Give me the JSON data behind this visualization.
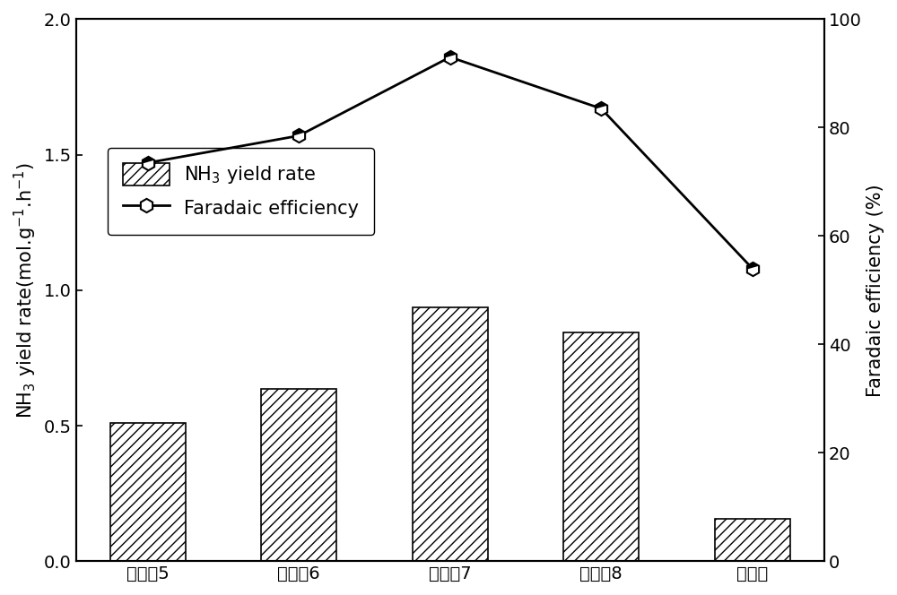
{
  "categories": [
    "实施兡5",
    "实施兡6",
    "实施兡7",
    "实施兡8",
    "对比例"
  ],
  "bar_values": [
    0.51,
    0.635,
    0.935,
    0.845,
    0.155
  ],
  "line_values": [
    73.5,
    78.5,
    93.0,
    83.5,
    54.0
  ],
  "bar_color": "#ffffff",
  "line_color": "#000000",
  "hatch": "///",
  "ylabel_left": "NH$_3$ yield rate(mol.g$^{-1}$.h$^{-1}$)",
  "ylabel_right": "Faradaic efficiency (%)",
  "ylim_left": [
    0.0,
    2.0
  ],
  "ylim_right": [
    0,
    100
  ],
  "yticks_left": [
    0.0,
    0.5,
    1.0,
    1.5,
    2.0
  ],
  "yticks_right": [
    0,
    20,
    40,
    60,
    80,
    100
  ],
  "legend_bar": "NH$_3$ yield rate",
  "legend_line": "Faradaic efficiency",
  "marker_size": 11,
  "line_width": 2.0,
  "bar_width": 0.5,
  "bar_edge_color": "#000000",
  "background_color": "#ffffff",
  "font_size": 15,
  "tick_font_size": 14,
  "label_font_size": 15
}
